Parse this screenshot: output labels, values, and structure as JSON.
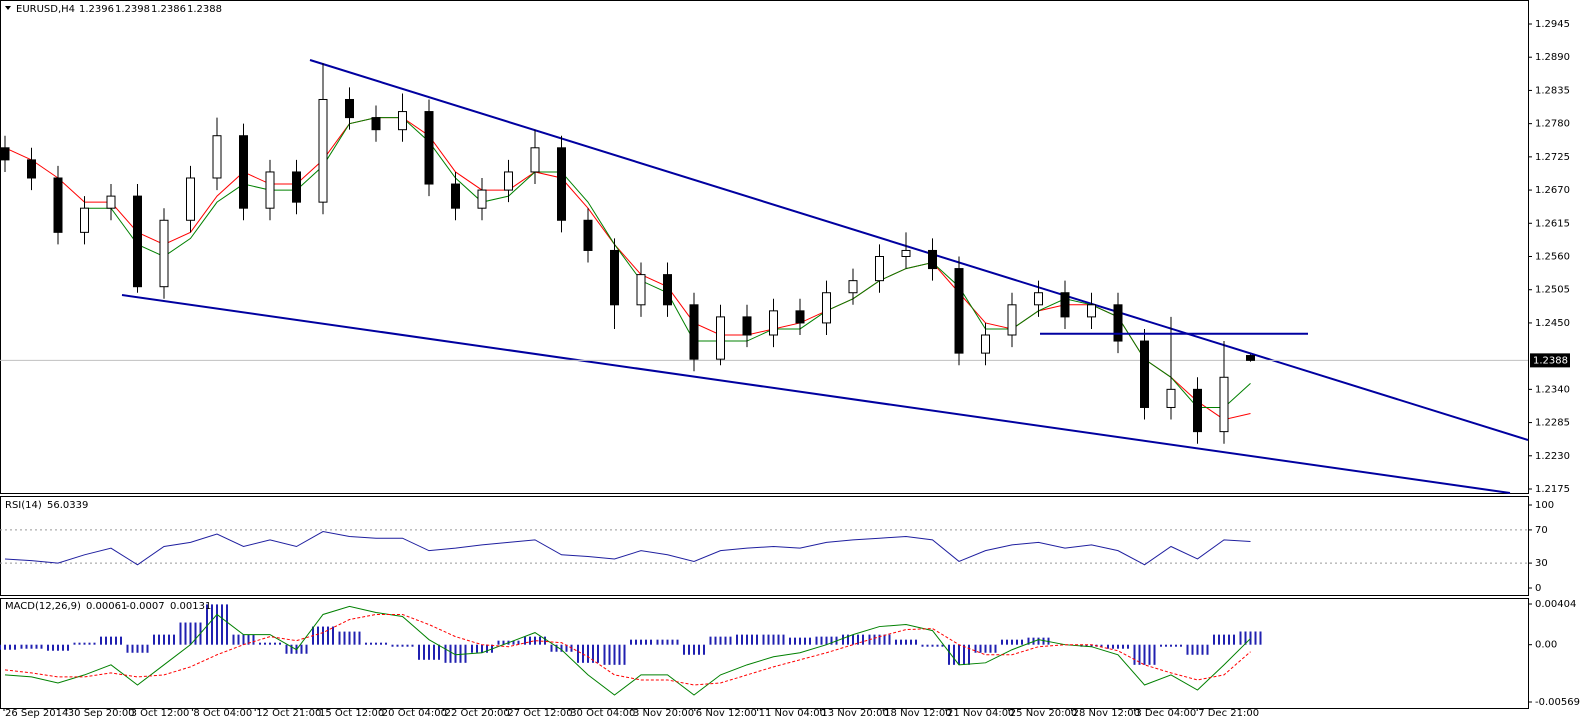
{
  "chart_data": [
    {
      "type": "candlestick",
      "symbol": "EURUSD,H4",
      "open": [
        1.274,
        1.272,
        1.269,
        1.26,
        1.264,
        1.266,
        1.251,
        1.262,
        1.269,
        1.276,
        1.264,
        1.27,
        1.265,
        1.282,
        1.279,
        1.277,
        1.28,
        1.268,
        1.264,
        1.267,
        1.27,
        1.274,
        1.262,
        1.257,
        1.248,
        1.253,
        1.248,
        1.239,
        1.246,
        1.243,
        1.247,
        1.245,
        1.25,
        1.252,
        1.256,
        1.257,
        1.254,
        1.24,
        1.243,
        1.248,
        1.25,
        1.246,
        1.248,
        1.242,
        1.231,
        1.234,
        1.227,
        1.2396
      ],
      "high": [
        1.276,
        1.274,
        1.271,
        1.266,
        1.268,
        1.268,
        1.264,
        1.271,
        1.279,
        1.278,
        1.272,
        1.272,
        1.288,
        1.284,
        1.281,
        1.283,
        1.282,
        1.27,
        1.269,
        1.272,
        1.277,
        1.276,
        1.264,
        1.259,
        1.255,
        1.255,
        1.25,
        1.248,
        1.248,
        1.249,
        1.249,
        1.252,
        1.254,
        1.258,
        1.26,
        1.259,
        1.256,
        1.245,
        1.25,
        1.252,
        1.252,
        1.25,
        1.25,
        1.244,
        1.246,
        1.236,
        1.242,
        1.2398
      ],
      "low": [
        1.27,
        1.267,
        1.258,
        1.258,
        1.262,
        1.25,
        1.249,
        1.26,
        1.267,
        1.262,
        1.262,
        1.263,
        1.263,
        1.277,
        1.275,
        1.275,
        1.266,
        1.262,
        1.262,
        1.265,
        1.268,
        1.26,
        1.255,
        1.244,
        1.246,
        1.246,
        1.237,
        1.238,
        1.241,
        1.241,
        1.243,
        1.243,
        1.248,
        1.25,
        1.254,
        1.252,
        1.238,
        1.238,
        1.241,
        1.246,
        1.244,
        1.244,
        1.24,
        1.229,
        1.229,
        1.225,
        1.225,
        1.2386
      ],
      "close": [
        1.272,
        1.269,
        1.26,
        1.264,
        1.266,
        1.251,
        1.262,
        1.269,
        1.276,
        1.264,
        1.27,
        1.265,
        1.282,
        1.279,
        1.277,
        1.28,
        1.268,
        1.264,
        1.267,
        1.27,
        1.274,
        1.262,
        1.257,
        1.248,
        1.253,
        1.248,
        1.239,
        1.246,
        1.243,
        1.247,
        1.245,
        1.25,
        1.252,
        1.256,
        1.257,
        1.254,
        1.24,
        1.243,
        1.248,
        1.25,
        1.246,
        1.248,
        1.242,
        1.231,
        1.234,
        1.227,
        1.236,
        1.2388
      ],
      "series": [
        {
          "color": "#ff0000",
          "values": [
            1.274,
            1.272,
            1.269,
            1.265,
            1.265,
            1.26,
            1.258,
            1.26,
            1.266,
            1.27,
            1.268,
            1.268,
            1.272,
            1.278,
            1.279,
            1.279,
            1.276,
            1.27,
            1.267,
            1.267,
            1.27,
            1.269,
            1.264,
            1.258,
            1.253,
            1.251,
            1.245,
            1.243,
            1.243,
            1.244,
            1.245,
            1.247,
            1.249,
            1.252,
            1.254,
            1.255,
            1.25,
            1.245,
            1.244,
            1.247,
            1.248,
            1.248,
            1.246,
            1.239,
            1.236,
            1.232,
            1.229,
            1.23
          ]
        },
        {
          "color": "#008000",
          "values": [
            null,
            null,
            null,
            1.264,
            1.264,
            1.258,
            1.256,
            1.259,
            1.265,
            1.268,
            1.267,
            1.267,
            1.271,
            1.278,
            1.279,
            1.279,
            1.275,
            1.269,
            1.265,
            1.266,
            1.27,
            1.27,
            1.265,
            1.258,
            1.252,
            1.25,
            1.242,
            1.242,
            1.242,
            1.244,
            1.244,
            1.247,
            1.249,
            1.252,
            1.254,
            1.255,
            1.251,
            1.244,
            1.244,
            1.247,
            1.249,
            1.248,
            1.246,
            1.239,
            1.236,
            1.231,
            1.231,
            1.235
          ]
        }
      ],
      "resistance": 1.2432,
      "ylim": [
        1.2175,
        1.2945
      ],
      "yticks": [
        1.2945,
        {
          "value": 1.289,
          "label": "1.2890"
        },
        1.2835,
        {
          "value": 1.278,
          "label": "1.2780"
        },
        1.2725,
        {
          "value": 1.267,
          "label": "1.2670"
        },
        1.2615,
        {
          "value": 1.256,
          "label": "1.2560"
        },
        1.2505,
        {
          "value": 1.245,
          "label": "1.2450"
        },
        {
          "value": 1.234,
          "label": "1.2340"
        },
        1.2285,
        {
          "value": 1.223,
          "label": "1.2230"
        },
        1.2175
      ],
      "x_labels": [
        "26 Sep 2014",
        "30 Sep 20:00",
        "3 Oct 12:00",
        "8 Oct 04:00",
        "12 Oct 21:00",
        "15 Oct 12:00",
        "20 Oct 04:00",
        "22 Oct 20:00",
        "27 Oct 12:00",
        "30 Oct 04:00",
        "3 Nov 20:00",
        "6 Nov 12:00",
        "11 Nov 04:00",
        "13 Nov 20:00",
        "18 Nov 12:00",
        "21 Nov 04:00",
        "25 Nov 20:00",
        "28 Nov 12:00",
        "3 Dec 04:00",
        "7 Dec 21:00"
      ]
    },
    {
      "type": "line",
      "title": "RSI(14)",
      "color": "#1f1f9f",
      "values": [
        35,
        33,
        30,
        40,
        48,
        28,
        50,
        55,
        65,
        50,
        58,
        50,
        68,
        62,
        60,
        60,
        45,
        48,
        52,
        55,
        58,
        40,
        38,
        35,
        45,
        40,
        32,
        45,
        48,
        50,
        48,
        55,
        58,
        60,
        62,
        58,
        32,
        45,
        52,
        55,
        48,
        52,
        45,
        28,
        50,
        35,
        58,
        56.0339
      ],
      "levels": [
        70,
        30
      ],
      "ylim": [
        0,
        100
      ],
      "yticks": [
        100,
        70,
        30,
        0
      ]
    },
    {
      "type": "macd",
      "title": "MACD(12,26,9)",
      "series": [
        {
          "color": "#008000",
          "values": [
            -0.003,
            -0.0032,
            -0.0038,
            -0.003,
            -0.002,
            -0.004,
            -0.002,
            0.0,
            0.003,
            0.001,
            0.001,
            -0.0005,
            0.003,
            0.0038,
            0.0032,
            0.0028,
            0.0005,
            -0.001,
            -0.0008,
            0.0002,
            0.0012,
            -0.0005,
            -0.003,
            -0.005,
            -0.003,
            -0.003,
            -0.005,
            -0.003,
            -0.002,
            -0.0012,
            -0.0008,
            0.0,
            0.001,
            0.0018,
            0.002,
            0.0014,
            -0.002,
            -0.0018,
            -0.0005,
            0.0005,
            0.0,
            -0.0002,
            -0.001,
            -0.004,
            -0.003,
            -0.0045,
            -0.002,
            0.00061
          ]
        },
        {
          "color": "#ff0000",
          "values": [
            -0.0025,
            -0.0028,
            -0.0032,
            -0.0032,
            -0.0028,
            -0.0032,
            -0.003,
            -0.0022,
            -0.001,
            0.0,
            0.0008,
            0.0004,
            0.0012,
            0.0025,
            0.003,
            0.003,
            0.002,
            0.0008,
            0.0,
            -0.0002,
            0.0004,
            0.0002,
            -0.0012,
            -0.003,
            -0.0035,
            -0.0035,
            -0.004,
            -0.0038,
            -0.003,
            -0.0022,
            -0.0015,
            -0.0008,
            0.0,
            0.0008,
            0.0015,
            0.0016,
            0.0,
            -0.001,
            -0.001,
            -0.0002,
            0.0,
            0.0,
            -0.0006,
            -0.002,
            -0.0028,
            -0.0035,
            -0.003,
            -0.0007
          ]
        },
        {
          "color": "#2020b0",
          "values": [
            -0.0005,
            -0.0004,
            -0.0006,
            0.0002,
            0.0008,
            -0.0008,
            0.001,
            0.0022,
            0.004,
            0.001,
            0.0002,
            -0.0009,
            0.0018,
            0.0013,
            0.0002,
            -0.0002,
            -0.0015,
            -0.0018,
            -0.0008,
            0.0004,
            0.0008,
            -0.0007,
            -0.0018,
            -0.002,
            0.0005,
            0.0005,
            -0.001,
            0.0008,
            0.001,
            0.001,
            0.0007,
            0.0008,
            0.001,
            0.001,
            0.0005,
            -0.0002,
            -0.002,
            -0.0008,
            0.0005,
            0.0007,
            0.0,
            -0.0002,
            -0.0004,
            -0.002,
            -0.0002,
            -0.001,
            0.001,
            0.00131
          ]
        }
      ],
      "ylim": [
        -0.00569,
        0.00404
      ],
      "yticks": [
        0.00404,
        {
          "value": 0,
          "label": "0.00"
        },
        -0.00569
      ]
    }
  ]
}
